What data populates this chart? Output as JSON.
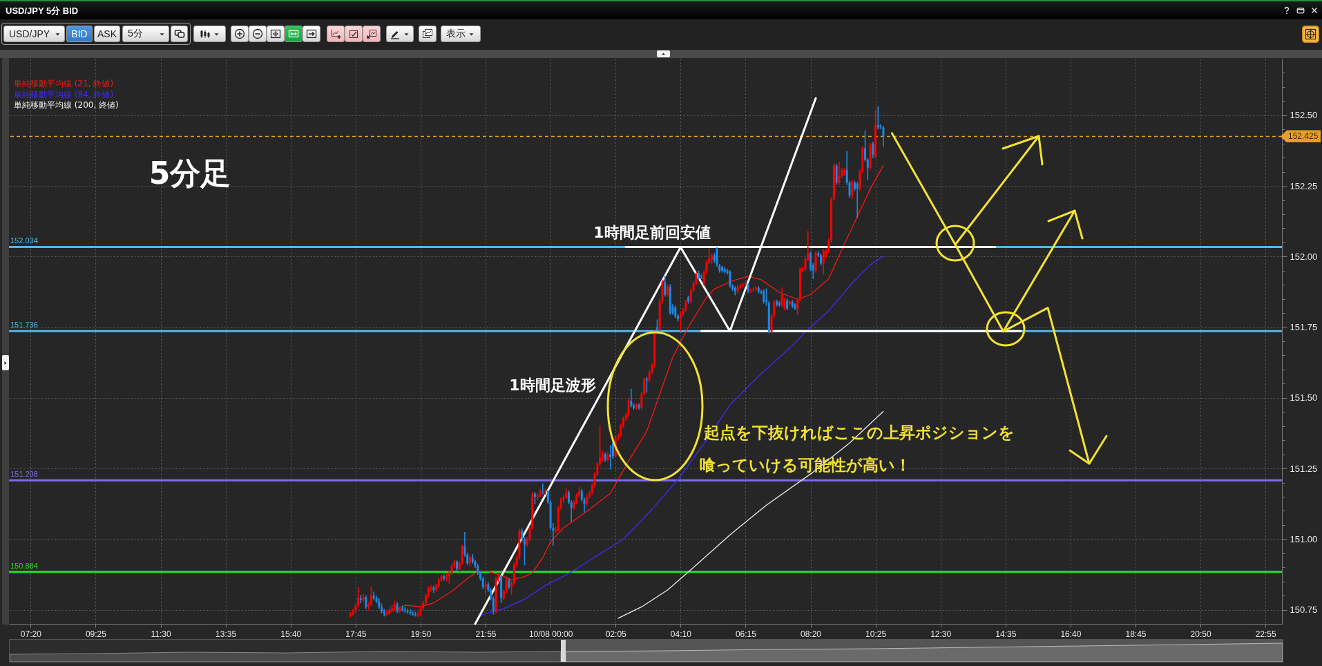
{
  "chart_data": {
    "type": "candlestick",
    "title": "USD/JPY 5分 BID",
    "annotations": [
      "USD/JPY",
      "BID",
      "ASK",
      "5分",
      "表示",
      "5分足",
      {
        "text": "1時間足前回安値",
        "x": "--10-08T03:15",
        "y": 152.034
      },
      "1時間足波形",
      "起点を下抜ければここの上昇ポジションを",
      "喰っていける可能性が高い！"
    ],
    "x": [
      "--10-07T17:35",
      "--10-07T17:40",
      "--10-07T17:45",
      "--10-07T17:50",
      "--10-07T17:55",
      "--10-07T18:00",
      "--10-07T18:05",
      "--10-07T18:10",
      "--10-07T18:15",
      "--10-07T18:20",
      "--10-07T18:25",
      "--10-07T18:30",
      "--10-07T18:35",
      "--10-07T18:40",
      "--10-07T18:45",
      "--10-07T18:50",
      "--10-07T18:55",
      "--10-07T19:00",
      "--10-07T19:05",
      "--10-07T19:10",
      "--10-07T19:15",
      "--10-07T19:20",
      "--10-07T19:25",
      "--10-07T19:30",
      "--10-07T19:35",
      "--10-07T19:40",
      "--10-07T19:45",
      "--10-07T19:50",
      "--10-07T19:55",
      "--10-07T20:00",
      "--10-07T20:05",
      "--10-07T20:10",
      "--10-07T20:15",
      "--10-07T20:20",
      "--10-07T20:25",
      "--10-07T20:30",
      "--10-07T20:35",
      "--10-07T20:40",
      "--10-07T20:45",
      "--10-07T20:50",
      "--10-07T20:55",
      "--10-07T21:00",
      "--10-07T21:05",
      "--10-07T21:10",
      "--10-07T21:15",
      "--10-07T21:20",
      "--10-07T21:25",
      "--10-07T21:30",
      "--10-07T21:35",
      "--10-07T21:40",
      "--10-07T21:45",
      "--10-07T21:50",
      "--10-07T21:55",
      "--10-07T22:00",
      "--10-07T22:05",
      "--10-07T22:10",
      "--10-07T22:15",
      "--10-07T22:20",
      "--10-07T22:25",
      "--10-07T22:30",
      "--10-07T22:35",
      "--10-07T22:40",
      "--10-07T22:45",
      "--10-07T22:50",
      "--10-07T22:55",
      "--10-07T23:00",
      "--10-07T23:05",
      "--10-07T23:10",
      "--10-07T23:15",
      "--10-07T23:20",
      "--10-07T23:25",
      "--10-07T23:30",
      "--10-07T23:35",
      "--10-07T23:40",
      "--10-07T23:45",
      "--10-07T23:50",
      "--10-07T23:55",
      "--10-08T00:00",
      "--10-08T00:05",
      "--10-08T00:10",
      "--10-08T00:15",
      "--10-08T00:20",
      "--10-08T00:25",
      "--10-08T00:30",
      "--10-08T00:35",
      "--10-08T00:40",
      "--10-08T00:45",
      "--10-08T00:50",
      "--10-08T00:55",
      "--10-08T01:00",
      "--10-08T01:05",
      "--10-08T01:10",
      "--10-08T01:15",
      "--10-08T01:20",
      "--10-08T01:25",
      "--10-08T01:30",
      "--10-08T01:35",
      "--10-08T01:40",
      "--10-08T01:45",
      "--10-08T01:50",
      "--10-08T01:55",
      "--10-08T02:00",
      "--10-08T02:05",
      "--10-08T02:10",
      "--10-08T02:15",
      "--10-08T02:20",
      "--10-08T02:25",
      "--10-08T02:30",
      "--10-08T02:35",
      "--10-08T02:40",
      "--10-08T02:45",
      "--10-08T02:50",
      "--10-08T02:55",
      "--10-08T03:00",
      "--10-08T03:05",
      "--10-08T03:10",
      "--10-08T03:15",
      "--10-08T03:20",
      "--10-08T03:25",
      "--10-08T03:30",
      "--10-08T03:35",
      "--10-08T03:40",
      "--10-08T03:45",
      "--10-08T03:50",
      "--10-08T03:55",
      "--10-08T04:00",
      "--10-08T04:05",
      "--10-08T04:10",
      "--10-08T04:15",
      "--10-08T04:20",
      "--10-08T04:25",
      "--10-08T04:30",
      "--10-08T04:35",
      "--10-08T04:40",
      "--10-08T04:45",
      "--10-08T04:50",
      "--10-08T04:55",
      "--10-08T05:00",
      "--10-08T05:05",
      "--10-08T05:10",
      "--10-08T05:15",
      "--10-08T05:20",
      "--10-08T05:25",
      "--10-08T05:30",
      "--10-08T05:35",
      "--10-08T05:40",
      "--10-08T05:45",
      "--10-08T05:50",
      "--10-08T05:55",
      "--10-08T06:00",
      "--10-08T06:05",
      "--10-08T06:10",
      "--10-08T06:15",
      "--10-08T06:20",
      "--10-08T06:25",
      "--10-08T06:30",
      "--10-08T06:35",
      "--10-08T06:40",
      "--10-08T06:45",
      "--10-08T06:50",
      "--10-08T06:55",
      "--10-08T07:00",
      "--10-08T07:05",
      "--10-08T07:10",
      "--10-08T07:15",
      "--10-08T07:20",
      "--10-08T07:25",
      "--10-08T07:30",
      "--10-08T07:35",
      "--10-08T07:40",
      "--10-08T07:45",
      "--10-08T07:50",
      "--10-08T07:55",
      "--10-08T08:00",
      "--10-08T08:05",
      "--10-08T08:10",
      "--10-08T08:15",
      "--10-08T08:20",
      "--10-08T08:25",
      "--10-08T08:30",
      "--10-08T08:35",
      "--10-08T08:40",
      "--10-08T08:45",
      "--10-08T08:50",
      "--10-08T08:55",
      "--10-08T09:00",
      "--10-08T09:05",
      "--10-08T09:10",
      "--10-08T09:15",
      "--10-08T09:20",
      "--10-08T09:25",
      "--10-08T09:30",
      "--10-08T09:35",
      "--10-08T09:40",
      "--10-08T09:45",
      "--10-08T09:50",
      "--10-08T09:55",
      "--10-08T10:00",
      "--10-08T10:05",
      "--10-08T10:10",
      "--10-08T10:15",
      "--10-08T10:20",
      "--10-08T10:25",
      "--10-08T10:30",
      "--10-08T10:35",
      "--10-08T10:40"
    ],
    "ohlc": [
      [
        150.728,
        150.74,
        150.725,
        150.735
      ],
      [
        150.735,
        150.752,
        150.73,
        150.745
      ],
      [
        150.745,
        150.77,
        150.74,
        150.765
      ],
      [
        150.765,
        150.828,
        150.76,
        150.79
      ],
      [
        150.79,
        150.8,
        150.775,
        150.785
      ],
      [
        150.785,
        150.805,
        150.78,
        150.795
      ],
      [
        150.795,
        150.8,
        150.755,
        150.76
      ],
      [
        150.76,
        150.775,
        150.75,
        150.77
      ],
      [
        150.77,
        150.83,
        150.765,
        150.8
      ],
      [
        150.8,
        150.812,
        150.785,
        150.79
      ],
      [
        150.79,
        150.798,
        150.775,
        150.78
      ],
      [
        150.78,
        150.79,
        150.755,
        150.76
      ],
      [
        150.76,
        150.77,
        150.74,
        150.745
      ],
      [
        150.745,
        150.752,
        150.728,
        150.735
      ],
      [
        150.735,
        150.748,
        150.73,
        150.74
      ],
      [
        150.74,
        150.756,
        150.735,
        150.75
      ],
      [
        150.75,
        150.765,
        150.745,
        150.755
      ],
      [
        150.755,
        150.78,
        150.75,
        150.77
      ],
      [
        150.77,
        150.775,
        150.74,
        150.745
      ],
      [
        150.745,
        150.76,
        150.74,
        150.755
      ],
      [
        150.755,
        150.762,
        150.745,
        150.75
      ],
      [
        150.75,
        150.758,
        150.74,
        150.745
      ],
      [
        150.745,
        150.752,
        150.738,
        150.742
      ],
      [
        150.742,
        150.75,
        150.733,
        150.738
      ],
      [
        150.738,
        150.745,
        150.73,
        150.733
      ],
      [
        150.733,
        150.74,
        150.728,
        150.73
      ],
      [
        150.73,
        150.74,
        150.725,
        150.735
      ],
      [
        150.735,
        150.76,
        150.73,
        150.755
      ],
      [
        150.755,
        150.78,
        150.75,
        150.775
      ],
      [
        150.775,
        150.805,
        150.77,
        150.8
      ],
      [
        150.8,
        150.83,
        150.795,
        150.825
      ],
      [
        150.825,
        150.835,
        150.815,
        150.828
      ],
      [
        150.828,
        150.833,
        150.812,
        150.82
      ],
      [
        150.82,
        150.84,
        150.815,
        150.835
      ],
      [
        150.835,
        150.86,
        150.83,
        150.855
      ],
      [
        150.855,
        150.872,
        150.85,
        150.868
      ],
      [
        150.868,
        150.873,
        150.855,
        150.86
      ],
      [
        150.86,
        150.878,
        150.852,
        150.87
      ],
      [
        150.87,
        150.885,
        150.845,
        150.88
      ],
      [
        150.88,
        150.91,
        150.875,
        150.905
      ],
      [
        150.905,
        150.925,
        150.9,
        150.92
      ],
      [
        150.92,
        150.922,
        150.89,
        150.895
      ],
      [
        150.895,
        150.92,
        150.885,
        150.915
      ],
      [
        150.915,
        150.978,
        150.91,
        150.975
      ],
      [
        150.975,
        151.023,
        150.94,
        150.945
      ],
      [
        150.945,
        150.95,
        150.91,
        150.915
      ],
      [
        150.915,
        150.94,
        150.905,
        150.935
      ],
      [
        150.935,
        150.945,
        150.915,
        150.92
      ],
      [
        150.92,
        150.925,
        150.9,
        150.905
      ],
      [
        150.905,
        150.91,
        150.875,
        150.88
      ],
      [
        150.88,
        150.885,
        150.855,
        150.86
      ],
      [
        150.86,
        150.865,
        150.825,
        150.83
      ],
      [
        150.83,
        150.85,
        150.805,
        150.84
      ],
      [
        150.84,
        150.845,
        150.815,
        150.82
      ],
      [
        150.82,
        150.825,
        150.785,
        150.79
      ],
      [
        150.79,
        150.795,
        150.735,
        150.745
      ],
      [
        150.745,
        150.865,
        150.738,
        150.86
      ],
      [
        150.86,
        150.878,
        150.85,
        150.87
      ],
      [
        150.87,
        150.872,
        150.775,
        150.79
      ],
      [
        150.79,
        150.82,
        150.785,
        150.815
      ],
      [
        150.815,
        150.86,
        150.81,
        150.855
      ],
      [
        150.855,
        150.858,
        150.825,
        150.83
      ],
      [
        150.83,
        150.85,
        150.805,
        150.845
      ],
      [
        150.845,
        150.915,
        150.84,
        150.91
      ],
      [
        150.91,
        150.94,
        150.905,
        150.935
      ],
      [
        150.935,
        151.035,
        150.93,
        151.03
      ],
      [
        151.03,
        151.035,
        150.995,
        151
      ],
      [
        151,
        151.005,
        150.909,
        150.98
      ],
      [
        150.98,
        151.005,
        150.975,
        151
      ],
      [
        151,
        151.045,
        150.995,
        151.04
      ],
      [
        151.04,
        151.165,
        151.035,
        151.16
      ],
      [
        151.16,
        151.165,
        151.125,
        151.15
      ],
      [
        151.15,
        151.16,
        151.14,
        151.155
      ],
      [
        151.155,
        151.175,
        151.15,
        151.168
      ],
      [
        151.168,
        151.195,
        151.16,
        151.165
      ],
      [
        151.165,
        151.178,
        151.158,
        151.17
      ],
      [
        151.17,
        151.172,
        151.125,
        151.13
      ],
      [
        151.13,
        151.135,
        151.035,
        151.04
      ],
      [
        151.04,
        151.055,
        150.978,
        151.03
      ],
      [
        151.03,
        151.042,
        151.022,
        151.035
      ],
      [
        151.035,
        151.115,
        151.03,
        151.112
      ],
      [
        151.112,
        151.145,
        151.105,
        151.14
      ],
      [
        151.14,
        151.155,
        151.13,
        151.15
      ],
      [
        151.15,
        151.178,
        151.145,
        151.165
      ],
      [
        151.165,
        151.17,
        151.125,
        151.13
      ],
      [
        151.13,
        151.135,
        151.064,
        151.11
      ],
      [
        151.11,
        151.135,
        151.105,
        151.13
      ],
      [
        151.13,
        151.16,
        151.125,
        151.155
      ],
      [
        151.155,
        151.182,
        151.15,
        151.17
      ],
      [
        151.17,
        151.175,
        151.135,
        151.14
      ],
      [
        151.14,
        151.145,
        151.097,
        151.125
      ],
      [
        151.125,
        151.155,
        151.12,
        151.15
      ],
      [
        151.15,
        151.17,
        151.145,
        151.165
      ],
      [
        151.165,
        151.195,
        151.16,
        151.19
      ],
      [
        151.19,
        151.235,
        151.185,
        151.23
      ],
      [
        151.23,
        151.27,
        151.225,
        151.265
      ],
      [
        151.265,
        151.4,
        151.26,
        151.29
      ],
      [
        151.29,
        151.31,
        151.275,
        151.3
      ],
      [
        151.3,
        151.305,
        151.275,
        151.28
      ],
      [
        151.28,
        151.305,
        151.275,
        151.3
      ],
      [
        151.3,
        151.33,
        151.248,
        151.29
      ],
      [
        151.34,
        151.345,
        151.285,
        151.293
      ],
      [
        151.293,
        151.365,
        151.29,
        151.36
      ],
      [
        151.36,
        151.372,
        151.35,
        151.368
      ],
      [
        151.368,
        151.405,
        151.362,
        151.4
      ],
      [
        151.4,
        151.432,
        151.395,
        151.428
      ],
      [
        151.428,
        151.445,
        151.42,
        151.44
      ],
      [
        151.44,
        151.495,
        151.435,
        151.49
      ],
      [
        151.49,
        151.53,
        151.468,
        151.472
      ],
      [
        151.472,
        151.478,
        151.46,
        151.465
      ],
      [
        151.465,
        151.48,
        151.46,
        151.475
      ],
      [
        151.475,
        151.478,
        151.46,
        151.465
      ],
      [
        151.465,
        151.52,
        151.46,
        151.515
      ],
      [
        151.515,
        151.57,
        151.51,
        151.566
      ],
      [
        151.566,
        151.572,
        151.52,
        151.562
      ],
      [
        151.562,
        151.595,
        151.558,
        151.59
      ],
      [
        151.59,
        151.62,
        151.585,
        151.615
      ],
      [
        151.615,
        151.736,
        151.61,
        151.734
      ],
      [
        151.75,
        151.775,
        151.735,
        151.742
      ],
      [
        151.742,
        151.85,
        151.738,
        151.84
      ],
      [
        151.84,
        151.915,
        151.835,
        151.91
      ],
      [
        151.91,
        151.93,
        151.86,
        151.865
      ],
      [
        151.865,
        151.9,
        151.86,
        151.893
      ],
      [
        151.893,
        151.9,
        151.795,
        151.8
      ],
      [
        151.823,
        151.83,
        151.795,
        151.8
      ],
      [
        151.82,
        151.825,
        151.783,
        151.787
      ],
      [
        151.79,
        151.795,
        151.772,
        151.778
      ],
      [
        151.778,
        151.8,
        151.738,
        151.795
      ],
      [
        151.795,
        151.815,
        151.79,
        151.811
      ],
      [
        151.811,
        151.845,
        151.806,
        151.84
      ],
      [
        151.856,
        151.86,
        151.835,
        151.84
      ],
      [
        151.84,
        151.885,
        151.835,
        151.88
      ],
      [
        151.88,
        151.91,
        151.875,
        151.905
      ],
      [
        151.905,
        151.942,
        151.9,
        151.938
      ],
      [
        151.942,
        151.948,
        151.92,
        151.925
      ],
      [
        151.93,
        151.935,
        151.922,
        151.928
      ],
      [
        151.905,
        151.95,
        151.9,
        151.946
      ],
      [
        151.946,
        151.985,
        151.94,
        151.979
      ],
      [
        151.979,
        152.027,
        151.975,
        151.995
      ],
      [
        151.99,
        152.008,
        151.975,
        152.004
      ],
      [
        152.004,
        152.01,
        151.98,
        151.985
      ],
      [
        152.028,
        152.032,
        151.965,
        151.971
      ],
      [
        151.967,
        151.972,
        151.945,
        151.95
      ],
      [
        151.962,
        151.966,
        151.945,
        151.95
      ],
      [
        151.955,
        151.96,
        151.942,
        151.946
      ],
      [
        151.95,
        151.955,
        151.938,
        151.942
      ],
      [
        151.946,
        151.95,
        151.892,
        151.897
      ],
      [
        151.897,
        151.9,
        151.88,
        151.885
      ],
      [
        151.889,
        151.893,
        151.865,
        151.877
      ],
      [
        151.877,
        151.897,
        151.872,
        151.893
      ],
      [
        151.893,
        151.9,
        151.888,
        151.897
      ],
      [
        151.897,
        151.905,
        151.892,
        151.901
      ],
      [
        151.901,
        151.908,
        151.896,
        151.904
      ],
      [
        151.9,
        151.903,
        151.872,
        151.877
      ],
      [
        151.877,
        151.885,
        151.872,
        151.881
      ],
      [
        151.881,
        151.889,
        151.876,
        151.885
      ],
      [
        151.885,
        151.893,
        151.88,
        151.889
      ],
      [
        151.889,
        151.893,
        151.872,
        151.877
      ],
      [
        151.877,
        151.88,
        151.868,
        151.872
      ],
      [
        151.877,
        151.882,
        151.835,
        151.84
      ],
      [
        151.845,
        151.885,
        151.828,
        151.84
      ],
      [
        151.835,
        151.84,
        151.73,
        151.734
      ],
      [
        151.734,
        151.795,
        151.73,
        151.791
      ],
      [
        151.791,
        151.845,
        151.786,
        151.84
      ],
      [
        151.84,
        151.845,
        151.825,
        151.828
      ],
      [
        151.836,
        151.84,
        151.824,
        151.828
      ],
      [
        151.828,
        151.889,
        151.824,
        151.865
      ],
      [
        151.816,
        151.852,
        151.812,
        151.848
      ],
      [
        151.844,
        151.85,
        151.812,
        151.816
      ],
      [
        151.832,
        151.845,
        151.828,
        151.84
      ],
      [
        151.84,
        151.844,
        151.82,
        151.824
      ],
      [
        151.828,
        151.832,
        151.812,
        151.816
      ],
      [
        151.816,
        151.85,
        151.795,
        151.848
      ],
      [
        151.848,
        151.96,
        151.845,
        151.955
      ],
      [
        151.95,
        151.962,
        151.945,
        151.958
      ],
      [
        151.955,
        151.995,
        151.95,
        151.991
      ],
      [
        151.989,
        152.089,
        151.985,
        152.012
      ],
      [
        152.012,
        152.016,
        151.95,
        151.955
      ],
      [
        151.971,
        151.975,
        151.922,
        151.95
      ],
      [
        151.95,
        152.016,
        151.945,
        152.012
      ],
      [
        152.012,
        152.018,
        152,
        152.004
      ],
      [
        152.004,
        152.008,
        151.97,
        151.975
      ],
      [
        151.975,
        152.025,
        151.94,
        152.02
      ],
      [
        152,
        152.025,
        151.995,
        152.02
      ],
      [
        152.02,
        152.062,
        152.015,
        152.057
      ],
      [
        152.057,
        152.208,
        152.052,
        152.204
      ],
      [
        152.204,
        152.328,
        152.2,
        152.322
      ],
      [
        152.322,
        152.326,
        152.256,
        152.261
      ],
      [
        152.261,
        152.334,
        152.256,
        152.285
      ],
      [
        152.285,
        152.312,
        152.28,
        152.306
      ],
      [
        152.293,
        152.312,
        152.288,
        152.306
      ],
      [
        152.306,
        152.371,
        152.256,
        152.261
      ],
      [
        152.261,
        152.266,
        152.21,
        152.216
      ],
      [
        152.216,
        152.27,
        152.205,
        152.265
      ],
      [
        152.261,
        152.266,
        152.235,
        152.24
      ],
      [
        152.257,
        152.262,
        152.138,
        152.24
      ],
      [
        152.24,
        152.306,
        152.235,
        152.302
      ],
      [
        152.302,
        152.388,
        152.298,
        152.383
      ],
      [
        152.383,
        152.444,
        152.338,
        152.342
      ],
      [
        152.342,
        152.346,
        152.273,
        152.314
      ],
      [
        152.314,
        152.4,
        152.31,
        152.396
      ],
      [
        152.4,
        152.404,
        152.35,
        152.359
      ],
      [
        152.355,
        152.518,
        152.35,
        152.465
      ],
      [
        152.465,
        152.53,
        152.452,
        152.457
      ],
      [
        152.461,
        152.466,
        152.452,
        152.457
      ],
      [
        152.457,
        152.46,
        152.391,
        152.425
      ]
    ],
    "colors": [
      "#ff0000",
      "#ff0000",
      "#ff0000",
      "#ff0000",
      "#1e88e5",
      "#ff0000",
      "#1e88e5",
      "#ff0000",
      "#ff0000",
      "#1e88e5",
      "#1e88e5",
      "#1e88e5",
      "#1e88e5",
      "#1e88e5",
      "#ff0000",
      "#ff0000",
      "#ff0000",
      "#ff0000",
      "#1e88e5",
      "#ff0000",
      "#1e88e5",
      "#1e88e5",
      "#1e88e5",
      "#1e88e5",
      "#1e88e5",
      "#1e88e5",
      "#ff0000",
      "#ff0000",
      "#ff0000",
      "#ff0000",
      "#ff0000",
      "#ff0000",
      "#1e88e5",
      "#ff0000",
      "#ff0000",
      "#ff0000",
      "#1e88e5",
      "#ff0000",
      "#ff0000",
      "#ff0000",
      "#ff0000",
      "#1e88e5",
      "#ff0000",
      "#ff0000",
      "#1e88e5",
      "#1e88e5",
      "#ff0000",
      "#1e88e5",
      "#1e88e5",
      "#1e88e5",
      "#1e88e5",
      "#1e88e5",
      "#ff0000",
      "#1e88e5",
      "#1e88e5",
      "#1e88e5",
      "#ff0000",
      "#ff0000",
      "#1e88e5",
      "#ff0000",
      "#ff0000",
      "#1e88e5",
      "#ff0000",
      "#ff0000",
      "#ff0000",
      "#ff0000",
      "#1e88e5",
      "#1e88e5",
      "#ff0000",
      "#ff0000",
      "#ff0000",
      "#1e88e5",
      "#ff0000",
      "#ff0000",
      "#1e88e5",
      "#ff0000",
      "#1e88e5",
      "#1e88e5",
      "#1e88e5",
      "#ff0000",
      "#ff0000",
      "#ff0000",
      "#ff0000",
      "#ff0000",
      "#1e88e5",
      "#1e88e5",
      "#ff0000",
      "#ff0000",
      "#ff0000",
      "#1e88e5",
      "#1e88e5",
      "#ff0000",
      "#ff0000",
      "#ff0000",
      "#ff0000",
      "#ff0000",
      "#ff0000",
      "#ff0000",
      "#1e88e5",
      "#ff0000",
      "#1e88e5",
      "#1e88e5",
      "#ff0000",
      "#ff0000",
      "#ff0000",
      "#ff0000",
      "#ff0000",
      "#ff0000",
      "#1e88e5",
      "#1e88e5",
      "#ff0000",
      "#1e88e5",
      "#ff0000",
      "#ff0000",
      "#1e88e5",
      "#ff0000",
      "#ff0000",
      "#ff0000",
      "#1e88e5",
      "#ff0000",
      "#ff0000",
      "#1e88e5",
      "#ff0000",
      "#1e88e5",
      "#1e88e5",
      "#1e88e5",
      "#1e88e5",
      "#ff0000",
      "#ff0000",
      "#ff0000",
      "#1e88e5",
      "#ff0000",
      "#ff0000",
      "#ff0000",
      "#1e88e5",
      "#1e88e5",
      "#ff0000",
      "#ff0000",
      "#ff0000",
      "#ff0000",
      "#1e88e5",
      "#1e88e5",
      "#1e88e5",
      "#1e88e5",
      "#1e88e5",
      "#1e88e5",
      "#1e88e5",
      "#1e88e5",
      "#1e88e5",
      "#ff0000",
      "#ff0000",
      "#ff0000",
      "#ff0000",
      "#1e88e5",
      "#ff0000",
      "#ff0000",
      "#ff0000",
      "#1e88e5",
      "#1e88e5",
      "#1e88e5",
      "#1e88e5",
      "#1e88e5",
      "#ff0000",
      "#ff0000",
      "#1e88e5",
      "#1e88e5",
      "#ff0000",
      "#ff0000",
      "#1e88e5",
      "#ff0000",
      "#1e88e5",
      "#1e88e5",
      "#ff0000",
      "#ff0000",
      "#ff0000",
      "#ff0000",
      "#ff0000",
      "#1e88e5",
      "#1e88e5",
      "#ff0000",
      "#1e88e5",
      "#1e88e5",
      "#ff0000",
      "#ff0000",
      "#ff0000",
      "#ff0000",
      "#ff0000",
      "#1e88e5",
      "#ff0000",
      "#ff0000",
      "#ff0000",
      "#1e88e5",
      "#1e88e5",
      "#ff0000",
      "#1e88e5",
      "#1e88e5",
      "#ff0000",
      "#ff0000",
      "#1e88e5",
      "#1e88e5",
      "#ff0000",
      "#1e88e5",
      "#ff0000",
      "#1e88e5",
      "#1e88e5",
      "#1e88e5"
    ],
    "series": [
      {
        "type": "line",
        "name": "単純移動平均線 (21, 終値)",
        "color": "#ff1414",
        "x": [
          "--10-07T18:40",
          "--10-07T19:20",
          "--10-07T19:50",
          "--10-07T20:15",
          "--10-07T20:50",
          "--10-07T21:20",
          "--10-07T21:40",
          "--10-07T22:00",
          "--10-07T22:30",
          "--10-07T22:45",
          "--10-07T23:10",
          "--10-07T23:25",
          "--10-07T23:45",
          "--10-08T00:00",
          "--10-08T00:25",
          "--10-08T01:15",
          "--10-08T01:55",
          "--10-08T02:30",
          "--10-08T03:05",
          "--10-08T03:30",
          "--10-08T03:55",
          "--10-08T04:25",
          "--10-08T05:00",
          "--10-08T05:15",
          "--10-08T05:50",
          "--10-08T06:20",
          "--10-08T06:45",
          "--10-08T07:20",
          "--10-08T07:55",
          "--10-08T08:20",
          "--10-08T08:55",
          "--10-08T09:25",
          "--10-08T09:50",
          "--10-08T10:15",
          "--10-08T10:40"
        ],
        "values": [
          150.73,
          150.766,
          150.761,
          150.774,
          150.815,
          150.86,
          150.886,
          150.886,
          150.868,
          150.856,
          150.867,
          150.881,
          150.934,
          150.99,
          151.04,
          151.105,
          151.162,
          151.276,
          151.382,
          151.513,
          151.644,
          151.75,
          151.856,
          151.885,
          151.914,
          151.93,
          151.918,
          151.873,
          151.848,
          151.865,
          151.922,
          152.044,
          152.142,
          152.24,
          152.322
        ]
      },
      {
        "type": "line",
        "name": "単純移動平均線 (84, 終値)",
        "color": "#3d2bff",
        "x": [
          "--10-07T21:40",
          "--10-07T22:30",
          "--10-07T23:10",
          "--10-07T23:50",
          "--10-08T00:25",
          "--10-08T00:55",
          "--10-08T02:20",
          "--10-08T03:15",
          "--10-08T04:05",
          "--10-08T05:00",
          "--10-08T05:45",
          "--10-08T06:45",
          "--10-08T07:45",
          "--10-08T08:15",
          "--10-08T08:55",
          "--10-08T09:40",
          "--10-08T10:15",
          "--10-08T10:40"
        ],
        "values": [
          150.728,
          150.754,
          150.787,
          150.836,
          150.868,
          150.901,
          151.0,
          151.105,
          151.211,
          151.35,
          151.475,
          151.585,
          151.685,
          151.742,
          151.808,
          151.906,
          151.971,
          152.001
        ]
      },
      {
        "type": "line",
        "name": "単純移動平均線 (200, 終値)",
        "color": "#eeeeee",
        "x": [
          "--10-08T02:10",
          "--10-08T02:55",
          "--10-08T03:45",
          "--10-08T04:35",
          "--10-08T05:45",
          "--10-08T06:55",
          "--10-08T08:25",
          "--10-08T09:35",
          "--10-08T10:40"
        ],
        "values": [
          150.72,
          150.76,
          150.82,
          150.9,
          151.015,
          151.12,
          151.237,
          151.34,
          151.452
        ]
      },
      {
        "type": "line",
        "color": "#ffffff",
        "x": [
          "--10-07T21:35",
          "--10-08T04:10",
          "--10-08T05:45",
          "--10-08T08:30"
        ],
        "values": [
          150.7,
          152.033,
          151.736,
          152.56
        ]
      },
      {
        "type": "line",
        "color": "#ffffff",
        "x": [
          "--10-08T02:25",
          "--10-08T14:15"
        ],
        "values": [
          152.034,
          152.034
        ]
      },
      {
        "type": "line",
        "color": "#ffffff",
        "x": [
          "--10-08T04:50",
          "--10-08T15:05"
        ],
        "values": [
          151.736,
          151.736
        ]
      }
    ],
    "ref_lines": [
      {
        "axis": "y",
        "value": 152.034,
        "label": "152.034",
        "color": "#4db8f0"
      },
      {
        "axis": "y",
        "value": 151.736,
        "label": "151.736",
        "color": "#4db8f0"
      },
      {
        "axis": "y",
        "value": 151.208,
        "label": "151.208",
        "color": "#7b6cf0"
      },
      {
        "axis": "y",
        "value": 150.884,
        "label": "150.884",
        "color": "#22e022"
      },
      {
        "axis": "y",
        "value": 152.425,
        "label": "152.425",
        "color": "#e8a020",
        "line_style": "dashed"
      }
    ],
    "xlim": [
      "--10-07T06:45",
      "--10-08T23:20"
    ],
    "xticks": [
      {
        "value": "--10-07T07:20",
        "label": "07:20"
      },
      {
        "value": "--10-07T09:25",
        "label": "09:25"
      },
      {
        "value": "--10-07T11:30",
        "label": "11:30"
      },
      {
        "value": "--10-07T13:35",
        "label": "13:35"
      },
      {
        "value": "--10-07T15:40",
        "label": "15:40"
      },
      {
        "value": "--10-07T17:45",
        "label": "17:45"
      },
      {
        "value": "--10-07T19:50",
        "label": "19:50"
      },
      {
        "value": "--10-07T21:55",
        "label": "21:55"
      },
      {
        "value": "--10-08T00:00",
        "label": "10/08 00:00"
      },
      {
        "value": "--10-08T02:05",
        "label": "02:05"
      },
      {
        "value": "--10-08T04:10",
        "label": "04:10"
      },
      {
        "value": "--10-08T06:15",
        "label": "06:15"
      },
      {
        "value": "--10-08T08:20",
        "label": "08:20"
      },
      {
        "value": "--10-08T10:25",
        "label": "10:25"
      },
      {
        "value": "--10-08T12:30",
        "label": "12:30"
      },
      {
        "value": "--10-08T14:35",
        "label": "14:35"
      },
      {
        "value": "--10-08T16:40",
        "label": "16:40"
      },
      {
        "value": "--10-08T18:45",
        "label": "18:45"
      },
      {
        "value": "--10-08T20:50",
        "label": "20:50"
      },
      {
        "value": "--10-08T22:55",
        "label": "22:55"
      }
    ],
    "ylim": [
      150.7,
      152.7
    ],
    "yticks": [
      150.75,
      {
        "value": 150.8,
        "label": null
      },
      {
        "value": 150.85,
        "label": null
      },
      {
        "value": 150.9,
        "label": null
      },
      {
        "value": 150.95,
        "label": null
      },
      {
        "value": 151,
        "label": "151.00"
      },
      {
        "value": 151.05,
        "label": null
      },
      {
        "value": 151.1,
        "label": null
      },
      {
        "value": 151.15,
        "label": null
      },
      {
        "value": 151.2,
        "label": null
      },
      151.25,
      {
        "value": 151.3,
        "label": null
      },
      {
        "value": 151.35,
        "label": null
      },
      {
        "value": 151.4,
        "label": null
      },
      {
        "value": 151.45,
        "label": null
      },
      {
        "value": 151.5,
        "label": "151.50"
      },
      {
        "value": 151.55,
        "label": null
      },
      {
        "value": 151.6,
        "label": null
      },
      {
        "value": 151.65,
        "label": null
      },
      {
        "value": 151.7,
        "label": null
      },
      151.75,
      {
        "value": 151.8,
        "label": null
      },
      {
        "value": 151.85,
        "label": null
      },
      {
        "value": 151.9,
        "label": null
      },
      {
        "value": 151.95,
        "label": null
      },
      {
        "value": 152,
        "label": "152.00"
      },
      {
        "value": 152.05,
        "label": null
      },
      {
        "value": 152.1,
        "label": null
      },
      {
        "value": 152.15,
        "label": null
      },
      {
        "value": 152.2,
        "label": null
      },
      152.25,
      {
        "value": 152.3,
        "label": null
      },
      {
        "value": 152.35,
        "label": null
      },
      {
        "value": 152.4,
        "label": null
      },
      {
        "value": 152.45,
        "label": null
      },
      {
        "value": 152.5,
        "label": "152.50"
      },
      {
        "value": 152.55,
        "label": null
      },
      {
        "value": 152.6,
        "label": null
      },
      {
        "value": 152.65,
        "label": null
      }
    ],
    "grid": true,
    "legend": "top left"
  }
}
